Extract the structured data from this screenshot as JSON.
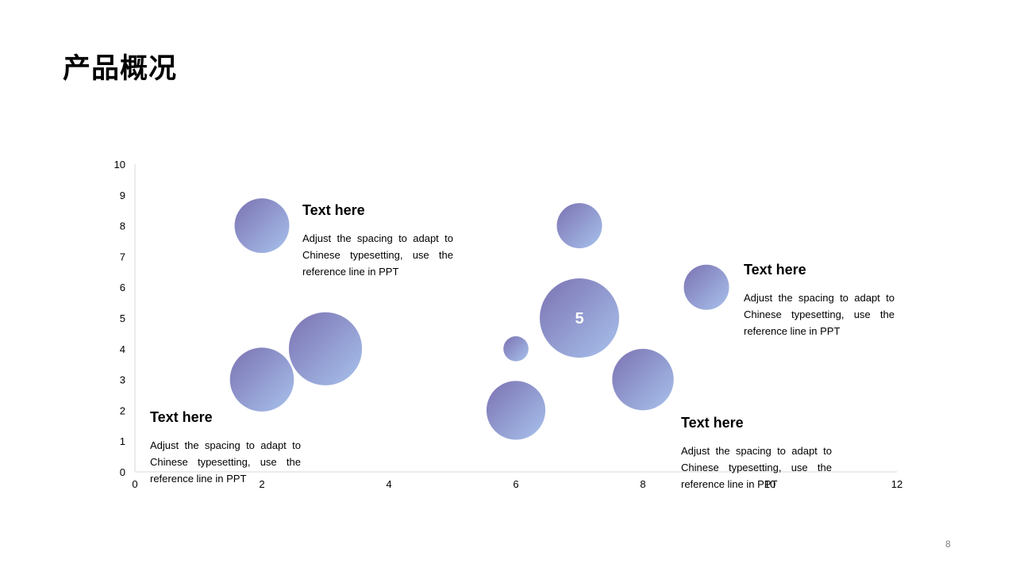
{
  "page": {
    "title": "产品概况",
    "page_number": "8"
  },
  "theme": {
    "bubble_color_start": "#7B72B2",
    "bubble_color_end": "#A8C2EC",
    "axis_color": "#D9D9D9"
  },
  "text_blocks": [
    {
      "heading": "Text here",
      "body": "Adjust the spacing to adapt to Chinese typesetting, use the reference line in PPT"
    },
    {
      "heading": "Text here",
      "body": "Adjust the spacing to adapt to Chinese typesetting, use the reference line in PPT"
    },
    {
      "heading": "Text here",
      "body": "Adjust the spacing to adapt to Chinese typesetting, use the reference line in PPT"
    },
    {
      "heading": "Text here",
      "body": "Adjust the spacing to adapt to Chinese typesetting, use the reference line in PPT"
    }
  ],
  "chart_data": {
    "type": "scatter",
    "subtype": "bubble",
    "title": "",
    "xlabel": "",
    "ylabel": "",
    "xlim": [
      0,
      12
    ],
    "ylim": [
      0,
      10
    ],
    "x_ticks": [
      "0",
      "2",
      "4",
      "6",
      "8",
      "10",
      "12"
    ],
    "y_ticks": [
      "0",
      "1",
      "2",
      "3",
      "4",
      "5",
      "6",
      "7",
      "8",
      "9",
      "10"
    ],
    "grid": false,
    "legend": "none",
    "points": [
      {
        "x": 2,
        "y": 8,
        "size": 1.9,
        "label": ""
      },
      {
        "x": 2,
        "y": 3,
        "size": 2.6,
        "label": ""
      },
      {
        "x": 3,
        "y": 4,
        "size": 3.4,
        "label": ""
      },
      {
        "x": 6,
        "y": 4,
        "size": 0.4,
        "label": ""
      },
      {
        "x": 6,
        "y": 2,
        "size": 2.2,
        "label": ""
      },
      {
        "x": 7,
        "y": 8,
        "size": 1.3,
        "label": ""
      },
      {
        "x": 7,
        "y": 5,
        "size": 4.0,
        "label": "5"
      },
      {
        "x": 8,
        "y": 3,
        "size": 2.4,
        "label": ""
      },
      {
        "x": 9,
        "y": 6,
        "size": 1.3,
        "label": ""
      }
    ]
  }
}
